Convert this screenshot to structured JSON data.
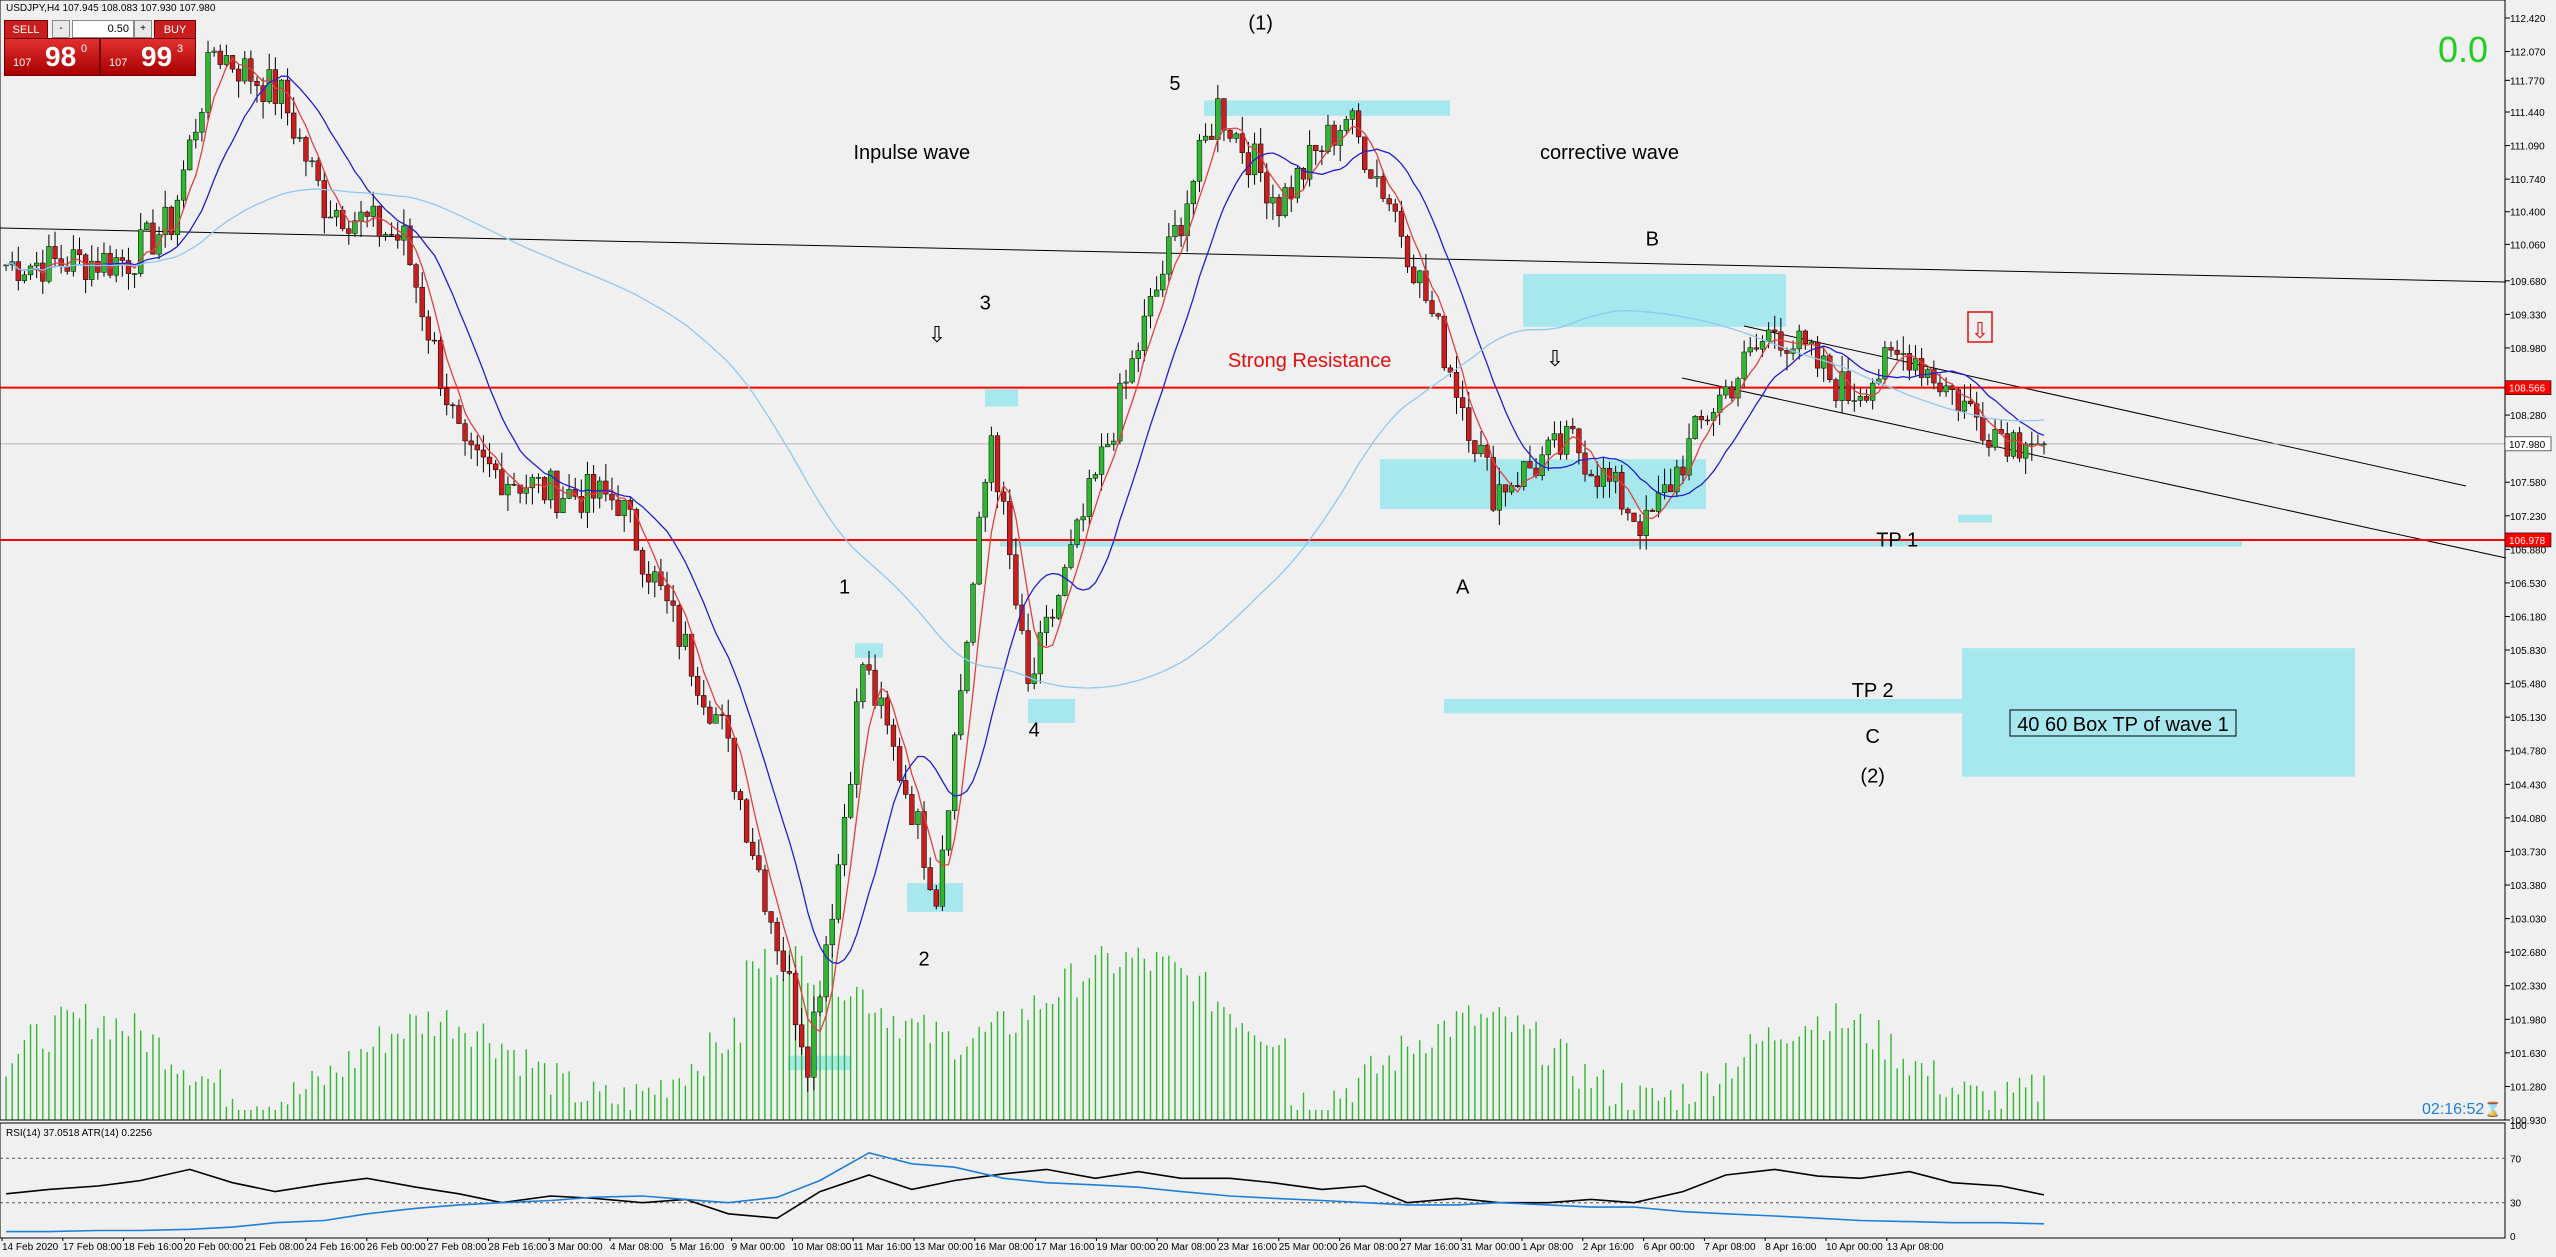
{
  "header": {
    "symbol_info": "USDJPY,H4  107.945 108.083 107.930 107.980",
    "corner_value": "0.0",
    "countdown": "02:16:52"
  },
  "trade_panel": {
    "sell_label": "SELL",
    "buy_label": "BUY",
    "lot": "0.50",
    "sell_prefix": "107",
    "sell_big": "98",
    "sell_sup": "0",
    "buy_prefix": "107",
    "buy_big": "99",
    "buy_sup": "3"
  },
  "colors": {
    "bull": "#2fb82f",
    "bear": "#c81e1e",
    "ma_fast": "#e04040",
    "ma_slow": "#2020d0",
    "ma_long": "#8fc8f0",
    "zone": "#a6e8ee",
    "resistance": "#ff0000",
    "volume": "#2fb82f",
    "rsi": "#000000",
    "atr": "#1e7fd8"
  },
  "chart_data": [
    {
      "type": "candlestick",
      "title": "USDJPY,H4",
      "ylim": [
        100.93,
        112.42
      ],
      "y_ticks": [
        "112.420",
        "112.070",
        "111.770",
        "111.440",
        "111.090",
        "110.740",
        "110.400",
        "110.060",
        "109.680",
        "109.330",
        "108.980",
        "108.566",
        "108.280",
        "107.980",
        "107.580",
        "107.230",
        "106.978",
        "106.880",
        "106.530",
        "106.180",
        "105.830",
        "105.480",
        "105.130",
        "104.780",
        "104.430",
        "104.080",
        "103.730",
        "103.380",
        "103.030",
        "102.680",
        "102.330",
        "101.980",
        "101.630",
        "101.280",
        "100.930"
      ],
      "x_labels": [
        "14 Feb 2020",
        "17 Feb 08:00",
        "18 Feb 16:00",
        "20 Feb 00:00",
        "21 Feb 08:00",
        "24 Feb 16:00",
        "26 Feb 00:00",
        "27 Feb 08:00",
        "28 Feb 16:00",
        "3 Mar 00:00",
        "4 Mar 08:00",
        "5 Mar 16:00",
        "9 Mar 00:00",
        "10 Mar 08:00",
        "11 Mar 16:00",
        "13 Mar 00:00",
        "16 Mar 08:00",
        "17 Mar 16:00",
        "19 Mar 00:00",
        "20 Mar 08:00",
        "23 Mar 16:00",
        "25 Mar 00:00",
        "26 Mar 08:00",
        "27 Mar 16:00",
        "31 Mar 00:00",
        "1 Apr 08:00",
        "2 Apr 16:00",
        "6 Apr 00:00",
        "7 Apr 08:00",
        "8 Apr 16:00",
        "10 Apr 00:00",
        "13 Apr 08:00"
      ],
      "price_tags": {
        "resistance": "108.566",
        "support": "106.978",
        "current": "107.980"
      },
      "resistance_levels": [
        108.566,
        106.978
      ],
      "current_price": 107.98,
      "anchors": [
        [
          0,
          109.85
        ],
        [
          20,
          109.9
        ],
        [
          27,
          110.3
        ],
        [
          34,
          112.1
        ],
        [
          45,
          111.6
        ],
        [
          52,
          110.5
        ],
        [
          65,
          110.1
        ],
        [
          75,
          107.8
        ],
        [
          88,
          107.5
        ],
        [
          100,
          107.4
        ],
        [
          117,
          105.0
        ],
        [
          131,
          101.6
        ],
        [
          136,
          103.6
        ],
        [
          140,
          105.7
        ],
        [
          148,
          104.2
        ],
        [
          152,
          103.3
        ],
        [
          161,
          108.1
        ],
        [
          167,
          105.4
        ],
        [
          186,
          109.2
        ],
        [
          198,
          111.5
        ],
        [
          208,
          110.5
        ],
        [
          219,
          111.4
        ],
        [
          227,
          110.4
        ],
        [
          243,
          107.5
        ],
        [
          256,
          108.0
        ],
        [
          268,
          107.1
        ],
        [
          278,
          108.3
        ],
        [
          289,
          109.2
        ],
        [
          301,
          108.5
        ],
        [
          311,
          108.95
        ],
        [
          323,
          108.2
        ],
        [
          330,
          107.98
        ]
      ],
      "annotations": [
        {
          "text": "(1)",
          "price": 112.3,
          "bar": 205
        },
        {
          "text": "5",
          "price": 111.67,
          "bar": 191
        },
        {
          "text": "Inpulse wave",
          "price": 110.95,
          "bar": 148
        },
        {
          "text": "corrective wave",
          "price": 110.95,
          "bar": 262
        },
        {
          "text": "B",
          "price": 110.05,
          "bar": 269
        },
        {
          "text": "3",
          "price": 109.38,
          "bar": 160
        },
        {
          "text": "Strong Resistance",
          "price": 108.78,
          "bar": 213
        },
        {
          "text": "TP 1",
          "price": 106.91,
          "bar": 309
        },
        {
          "text": "A",
          "price": 106.42,
          "bar": 238
        },
        {
          "text": "1",
          "price": 106.42,
          "bar": 137
        },
        {
          "text": "TP 2",
          "price": 105.34,
          "bar": 305
        },
        {
          "text": "4",
          "price": 104.93,
          "bar": 168
        },
        {
          "text": "C",
          "price": 104.86,
          "bar": 305
        },
        {
          "text": "(2)",
          "price": 104.45,
          "bar": 305
        },
        {
          "text": "2",
          "price": 102.54,
          "bar": 150
        }
      ],
      "box_label": "40 60 Box TP of wave 1"
    },
    {
      "type": "line",
      "title": "RSI(14) 37.0518  ATR(14) 0.2256",
      "ylim": [
        0,
        100
      ],
      "y_ticks": [
        "100",
        "70",
        "30",
        "0"
      ],
      "series": [
        {
          "name": "RSI(14)",
          "values": [
            38,
            42,
            45,
            50,
            60,
            48,
            40,
            47,
            52,
            44,
            38,
            30,
            36,
            34,
            30,
            33,
            20,
            16,
            40,
            55,
            42,
            50,
            56,
            60,
            52,
            58,
            52,
            52,
            48,
            42,
            45,
            30,
            34,
            30,
            30,
            33,
            30,
            40,
            55,
            60,
            54,
            52,
            58,
            48,
            45,
            37
          ]
        },
        {
          "name": "ATR(14)",
          "values": [
            4,
            4,
            5,
            5,
            6,
            8,
            12,
            14,
            20,
            25,
            28,
            30,
            32,
            35,
            36,
            33,
            30,
            35,
            50,
            75,
            65,
            62,
            52,
            48,
            46,
            44,
            40,
            36,
            34,
            32,
            30,
            28,
            28,
            30,
            28,
            26,
            26,
            22,
            20,
            18,
            16,
            14,
            13,
            12,
            12,
            11
          ]
        }
      ]
    }
  ]
}
